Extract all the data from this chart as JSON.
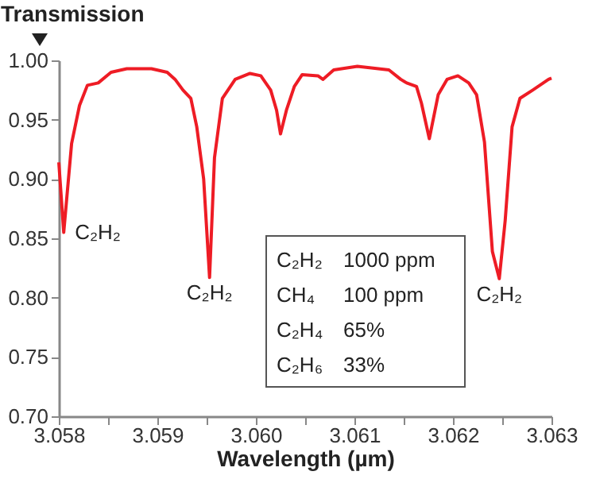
{
  "chart_data": {
    "type": "line",
    "xlabel": "Wavelength (µm)",
    "ylabel": "Transmission",
    "x": [
      3.058,
      3.05805,
      3.05813,
      3.05821,
      3.05829,
      3.0584,
      3.05853,
      3.05869,
      3.05894,
      3.0591,
      3.05918,
      3.05926,
      3.05934,
      3.0594,
      3.05947,
      3.05953,
      3.05958,
      3.05966,
      3.05979,
      3.05994,
      3.06005,
      3.06015,
      3.06021,
      3.06025,
      3.06031,
      3.06039,
      3.06047,
      3.06063,
      3.06068,
      3.06079,
      3.06103,
      3.06135,
      3.06147,
      3.06153,
      3.06163,
      3.06168,
      3.06176,
      3.06185,
      3.06194,
      3.06205,
      3.06216,
      3.06224,
      3.06232,
      3.0624,
      3.06247,
      3.06253,
      3.0626,
      3.06268,
      3.06281,
      3.06297,
      3.063
    ],
    "series": [
      {
        "color": "#ee1c25",
        "values": [
          0.914,
          0.855,
          0.93,
          0.962,
          0.979,
          0.981,
          0.99,
          0.993,
          0.993,
          0.99,
          0.984,
          0.975,
          0.968,
          0.944,
          0.9,
          0.817,
          0.918,
          0.968,
          0.984,
          0.989,
          0.987,
          0.975,
          0.958,
          0.938,
          0.958,
          0.978,
          0.988,
          0.987,
          0.984,
          0.992,
          0.995,
          0.992,
          0.984,
          0.981,
          0.978,
          0.964,
          0.934,
          0.971,
          0.984,
          0.987,
          0.981,
          0.971,
          0.931,
          0.839,
          0.816,
          0.865,
          0.944,
          0.968,
          0.975,
          0.984,
          0.985
        ]
      }
    ],
    "xlim": [
      3.058,
      3.063
    ],
    "xticks": [
      {
        "value": 3.058,
        "label": "3.058"
      },
      {
        "value": 3.0585,
        "label": null
      },
      {
        "value": 3.059,
        "label": "3.059"
      },
      {
        "value": 3.0595,
        "label": null
      },
      {
        "value": 3.06,
        "label": "3.060"
      },
      {
        "value": 3.0605,
        "label": null
      },
      {
        "value": 3.061,
        "label": "3.061"
      },
      {
        "value": 3.0615,
        "label": null
      },
      {
        "value": 3.062,
        "label": "3.062"
      },
      {
        "value": 3.0625,
        "label": null
      },
      {
        "value": 3.063,
        "label": "3.063"
      }
    ],
    "ylim": [
      0.7,
      1.0
    ],
    "yticks": [
      {
        "value": 0.7,
        "label": "0.70"
      },
      {
        "value": 0.75,
        "label": "0.75"
      },
      {
        "value": 0.8,
        "label": "0.80"
      },
      {
        "value": 0.85,
        "label": "0.85"
      },
      {
        "value": 0.9,
        "label": "0.90"
      },
      {
        "value": 0.95,
        "label": "0.95"
      },
      {
        "value": 1.0,
        "label": "1.00"
      }
    ],
    "annotations": [
      {
        "text": "C₂H₂",
        "x": 3.05805,
        "y": 0.855
      },
      {
        "text": "C₂H₂",
        "x": 3.05953,
        "y": 0.817
      },
      {
        "text": "C₂H₂",
        "x": 3.06247,
        "y": 0.816
      },
      "C₂H₂ 1000 ppm",
      "CH₄ 100 ppm",
      "C₂H₄ 65%",
      "C₂H₆ 33%"
    ],
    "grid": false,
    "marker": "none",
    "line_style": "solid"
  }
}
